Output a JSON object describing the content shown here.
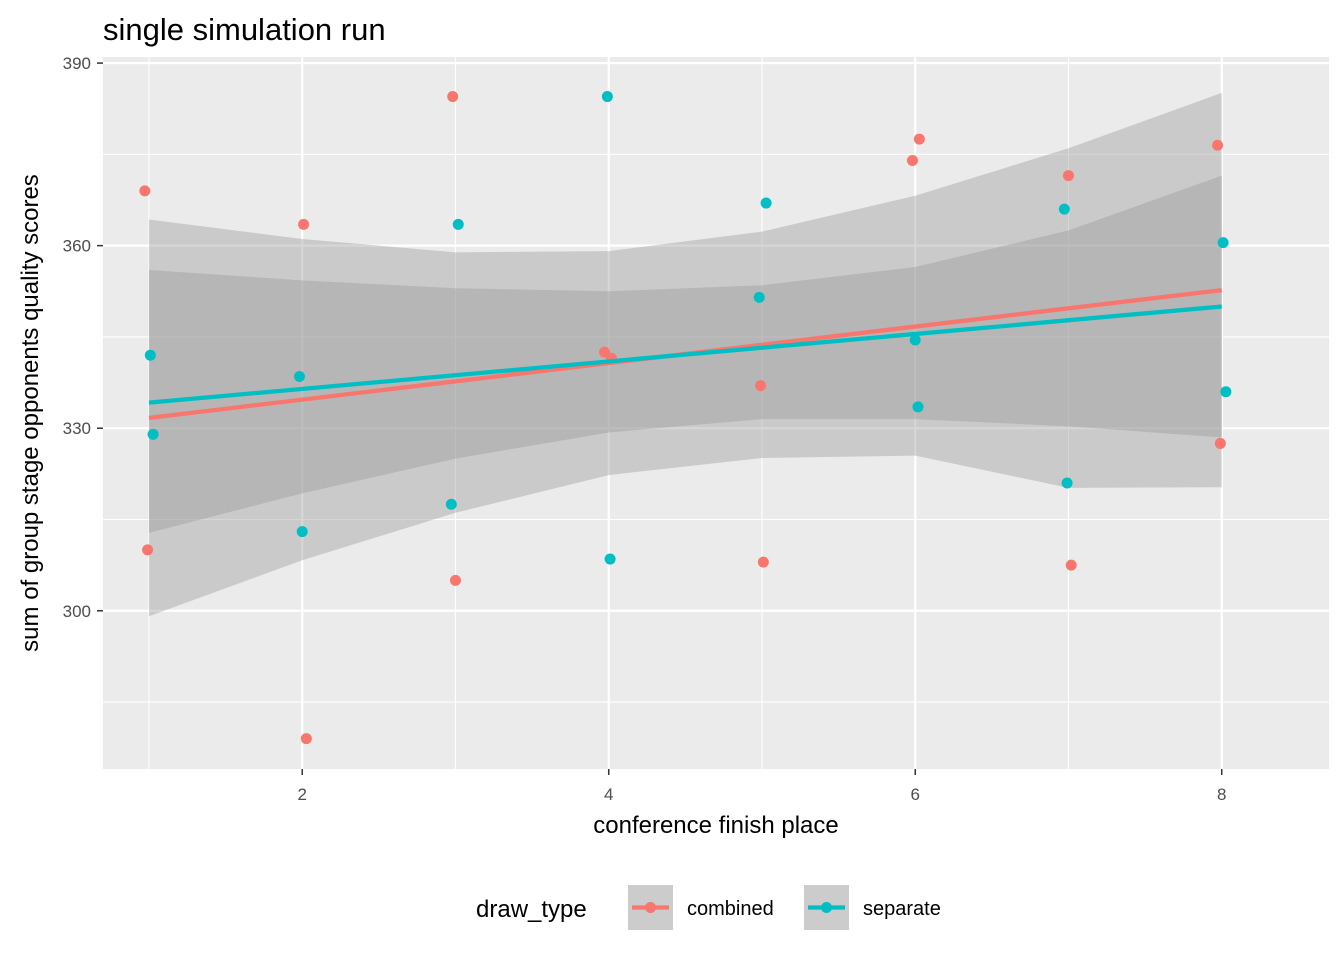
{
  "chart_data": {
    "type": "scatter",
    "title": "single simulation run",
    "xlabel": "conference finish place",
    "ylabel": "sum of group stage opponents quality scores",
    "xlim": [
      0.7,
      8.7
    ],
    "ylim": [
      274,
      391
    ],
    "x_ticks": [
      2,
      4,
      6,
      8
    ],
    "y_ticks": [
      300,
      330,
      360,
      390
    ],
    "grid": true,
    "legend": {
      "title": "draw_type",
      "position": "bottom"
    },
    "series": [
      {
        "name": "combined",
        "color": "#F8766D",
        "points": [
          {
            "x": 1,
            "y": 369
          },
          {
            "x": 1,
            "y": 310
          },
          {
            "x": 2,
            "y": 363.5
          },
          {
            "x": 2,
            "y": 279
          },
          {
            "x": 3,
            "y": 384.5
          },
          {
            "x": 3,
            "y": 305
          },
          {
            "x": 4,
            "y": 341.5
          },
          {
            "x": 4,
            "y": 342.5
          },
          {
            "x": 5,
            "y": 337
          },
          {
            "x": 5,
            "y": 308
          },
          {
            "x": 6,
            "y": 377.5
          },
          {
            "x": 6,
            "y": 374
          },
          {
            "x": 7,
            "y": 371.5
          },
          {
            "x": 7,
            "y": 307.5
          },
          {
            "x": 8,
            "y": 376.5
          },
          {
            "x": 8,
            "y": 327.5
          }
        ],
        "fit": {
          "x": [
            1,
            8
          ],
          "y": [
            331.7,
            352.7
          ]
        },
        "ci_upper": [
          364.3,
          361.1,
          358.9,
          359.1,
          362.3,
          368.2,
          376,
          385.1
        ],
        "ci_lower": [
          299.1,
          308.3,
          316.1,
          322.3,
          325.1,
          325.5,
          320.2,
          320.3
        ]
      },
      {
        "name": "separate",
        "color": "#00BFC4",
        "points": [
          {
            "x": 1,
            "y": 342
          },
          {
            "x": 1,
            "y": 329
          },
          {
            "x": 2,
            "y": 338.5
          },
          {
            "x": 2,
            "y": 313
          },
          {
            "x": 3,
            "y": 363.5
          },
          {
            "x": 3,
            "y": 317.5
          },
          {
            "x": 4,
            "y": 384.5
          },
          {
            "x": 4,
            "y": 308.5
          },
          {
            "x": 5,
            "y": 367
          },
          {
            "x": 5,
            "y": 351.5
          },
          {
            "x": 6,
            "y": 344.5
          },
          {
            "x": 6,
            "y": 333.5
          },
          {
            "x": 7,
            "y": 366
          },
          {
            "x": 7,
            "y": 321
          },
          {
            "x": 8,
            "y": 360.5
          },
          {
            "x": 8,
            "y": 336
          }
        ],
        "fit": {
          "x": [
            1,
            8
          ],
          "y": [
            334.2,
            350
          ]
        },
        "ci_upper": [
          356,
          354.3,
          353,
          352.5,
          353.5,
          356.5,
          362.5,
          371.5
        ],
        "ci_lower": [
          312.8,
          319.3,
          325,
          329.3,
          331.5,
          331.5,
          330.3,
          328.5
        ]
      }
    ]
  }
}
